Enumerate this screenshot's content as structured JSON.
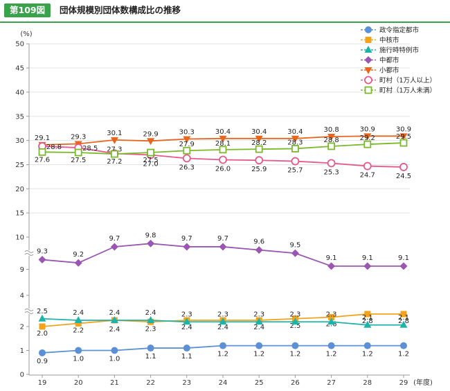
{
  "header": {
    "figure_number": "第109図",
    "title": "団体規模別団体数構成比の推移"
  },
  "chart_data": {
    "type": "line",
    "title": "団体規模別団体数構成比の推移",
    "ylabel": "(%)",
    "xunit": "(年度)",
    "x": [
      "19",
      "20",
      "21",
      "22",
      "23",
      "24",
      "25",
      "26",
      "27",
      "28",
      "29"
    ],
    "y_axis_note": "broken axis: 0–2, 4, 9, 10–50",
    "y_ticks": [
      0,
      1,
      2,
      4,
      9,
      10,
      15,
      20,
      25,
      30,
      35,
      40,
      45,
      50
    ],
    "legend_position": "top-right",
    "series": [
      {
        "name": "政令指定都市",
        "color": "#5b8fd6",
        "marker": "circle",
        "values": [
          0.9,
          1.0,
          1.0,
          1.1,
          1.1,
          1.2,
          1.2,
          1.2,
          1.2,
          1.2,
          1.2
        ]
      },
      {
        "name": "中核市",
        "color": "#f3a21c",
        "marker": "square",
        "values": [
          2.0,
          2.2,
          2.4,
          2.3,
          2.4,
          2.4,
          2.4,
          2.5,
          2.6,
          2.8,
          2.8
        ]
      },
      {
        "name": "施行時特例市",
        "color": "#1eb3aa",
        "marker": "triangle-up",
        "values": [
          2.5,
          2.4,
          2.4,
          2.4,
          2.3,
          2.3,
          2.3,
          2.3,
          2.3,
          2.1,
          2.1
        ]
      },
      {
        "name": "中都市",
        "color": "#9b55b3",
        "marker": "diamond",
        "values": [
          9.3,
          9.2,
          9.7,
          9.8,
          9.7,
          9.7,
          9.6,
          9.5,
          9.1,
          9.1,
          9.1
        ]
      },
      {
        "name": "小都市",
        "color": "#e8651c",
        "marker": "triangle-down",
        "values": [
          29.1,
          29.3,
          30.1,
          29.9,
          30.3,
          30.4,
          30.4,
          30.4,
          30.8,
          30.9,
          30.9
        ]
      },
      {
        "name": "町村（1万人以上）",
        "color": "#e8588a",
        "marker": "circle-open",
        "values": [
          28.8,
          28.5,
          27.3,
          27.0,
          26.3,
          26.0,
          25.9,
          25.7,
          25.3,
          24.7,
          24.5
        ]
      },
      {
        "name": "町村（1万人未満）",
        "color": "#7ab929",
        "marker": "square-open",
        "values": [
          27.6,
          27.5,
          27.2,
          27.5,
          27.9,
          28.1,
          28.2,
          28.3,
          28.8,
          29.2,
          29.5
        ]
      }
    ]
  }
}
